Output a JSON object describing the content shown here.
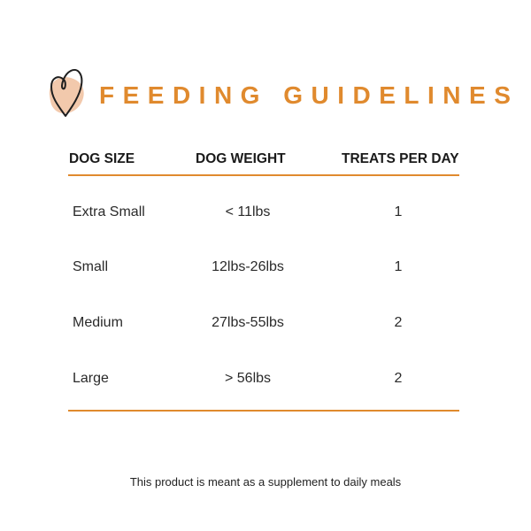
{
  "colors": {
    "accent": "#E08A2E",
    "blob": "#F2C9AC"
  },
  "logo": {
    "icon": "heart-icon"
  },
  "title": "FEEDING GUIDELINES",
  "table": {
    "headers": [
      "DOG SIZE",
      "DOG WEIGHT",
      "TREATS PER DAY"
    ],
    "rows": [
      [
        "Extra Small",
        "< 11lbs",
        "1"
      ],
      [
        "Small",
        "12lbs-26lbs",
        "1"
      ],
      [
        "Medium",
        "27lbs-55lbs",
        "2"
      ],
      [
        "Large",
        "> 56lbs",
        "2"
      ]
    ]
  },
  "footnote": "This product is meant as a supplement to daily meals"
}
